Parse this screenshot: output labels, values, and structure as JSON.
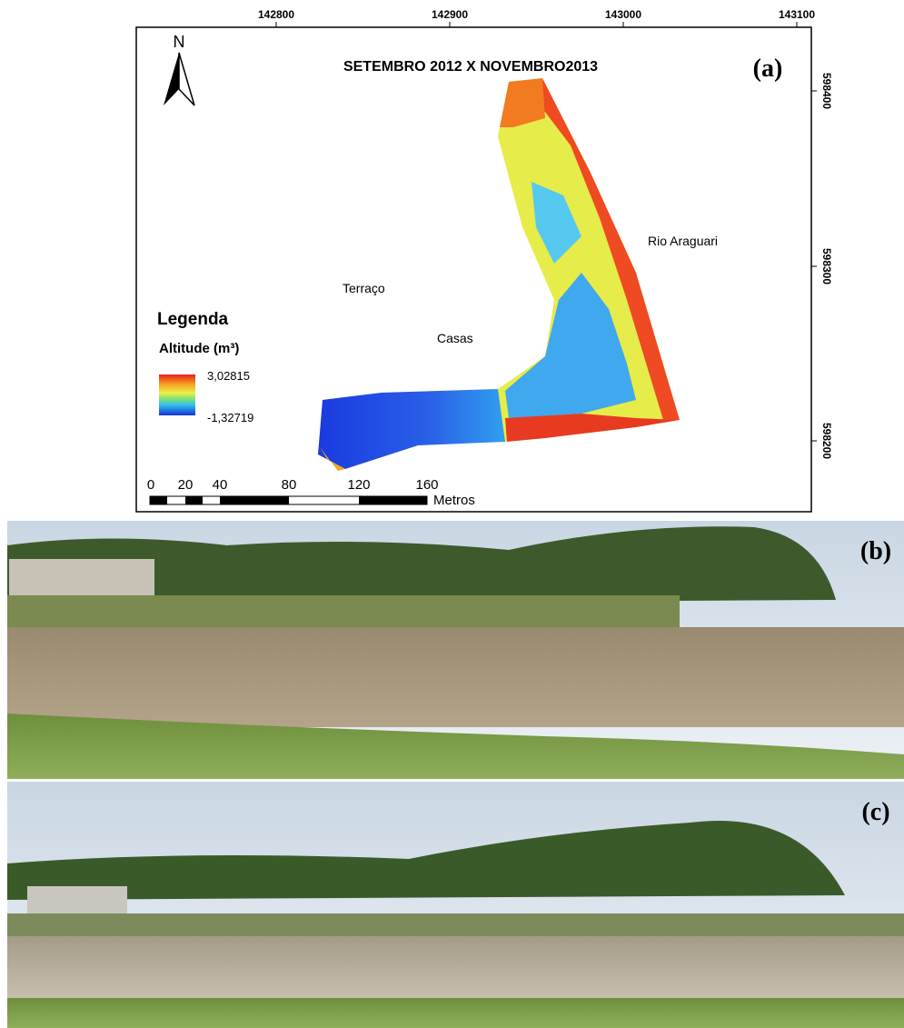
{
  "map": {
    "title": "SETEMBRO 2012 X NOVEMBRO2013",
    "panel_label": "(a)",
    "north": "N",
    "x_ticks": [
      "142800",
      "142900",
      "143000",
      "143100"
    ],
    "y_ticks": [
      "598400",
      "598300",
      "598200"
    ],
    "places": [
      "Rio Araguari",
      "Terraço",
      "Casas"
    ],
    "legend": {
      "title": "Legenda",
      "subtitle": "Altitude (m³)",
      "max": "3,02815",
      "min": "-1,32719"
    },
    "scale": {
      "labels": [
        "0",
        "20",
        "40",
        "80",
        "120",
        "160"
      ],
      "unit": "Metros"
    }
  },
  "photos": [
    {
      "panel_label": "(b)"
    },
    {
      "panel_label": "(c)"
    }
  ]
}
